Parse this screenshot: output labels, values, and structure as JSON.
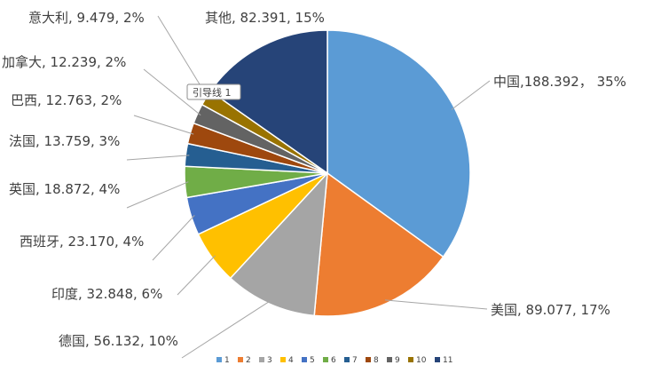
{
  "chart_data": {
    "type": "pie",
    "title": "",
    "slices": [
      {
        "name": "中国",
        "value": 188.392,
        "percent": "35%",
        "label": "中国,188.392， 35%",
        "color": "#5B9BD5"
      },
      {
        "name": "美国",
        "value": 89.077,
        "percent": "17%",
        "label": "美国, 89.077, 17%",
        "color": "#ED7D31"
      },
      {
        "name": "德国",
        "value": 56.132,
        "percent": "10%",
        "label": "德国, 56.132, 10%",
        "color": "#A5A5A5"
      },
      {
        "name": "印度",
        "value": 32.848,
        "percent": "6%",
        "label": "印度, 32.848, 6%",
        "color": "#FFC000"
      },
      {
        "name": "西班牙",
        "value": 23.17,
        "percent": "4%",
        "label": "西班牙, 23.170, 4%",
        "color": "#4472C4"
      },
      {
        "name": "英国",
        "value": 18.872,
        "percent": "4%",
        "label": "英国, 18.872, 4%",
        "color": "#70AD47"
      },
      {
        "name": "法国",
        "value": 13.759,
        "percent": "3%",
        "label": "法国, 13.759, 3%",
        "color": "#255E91"
      },
      {
        "name": "巴西",
        "value": 12.763,
        "percent": "2%",
        "label": "巴西, 12.763, 2%",
        "color": "#9E480E"
      },
      {
        "name": "加拿大",
        "value": 12.239,
        "percent": "2%",
        "label": "加拿大, 12.239, 2%",
        "color": "#636363"
      },
      {
        "name": "意大利",
        "value": 9.479,
        "percent": "2%",
        "label": "意大利, 9.479, 2%",
        "color": "#997300"
      },
      {
        "name": "其他",
        "value": 82.391,
        "percent": "15%",
        "label": "其他, 82.391, 15%",
        "color": "#264478"
      }
    ],
    "legend": {
      "position": "bottom",
      "entries": [
        "1",
        "2",
        "3",
        "4",
        "5",
        "6",
        "7",
        "8",
        "9",
        "10",
        "11"
      ]
    },
    "tooltip": "引导线 1"
  }
}
